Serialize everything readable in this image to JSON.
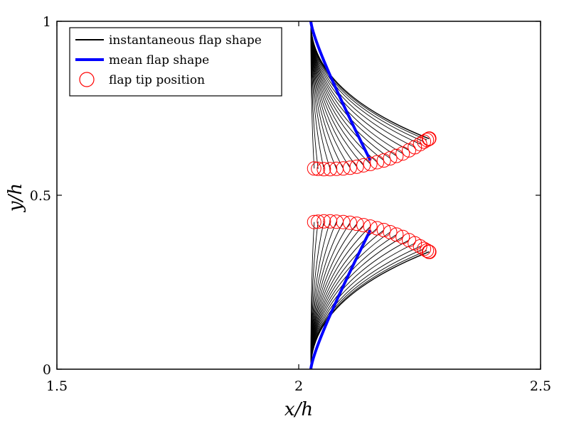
{
  "chart_data": {
    "type": "line",
    "title": "",
    "xlabel": "x/h",
    "ylabel": "y/h",
    "xlim": [
      1.5,
      2.5
    ],
    "ylim": [
      0,
      1
    ],
    "x_ticks": [
      {
        "value": 1.5,
        "label": "1.5"
      },
      {
        "value": 2,
        "label": "2"
      },
      {
        "value": 2.5,
        "label": "2.5"
      }
    ],
    "y_ticks": [
      {
        "value": 0,
        "label": "0"
      },
      {
        "value": 0.5,
        "label": "0.5"
      },
      {
        "value": 1,
        "label": "1"
      }
    ],
    "grid": false,
    "legend_position": "top-left",
    "legend": [
      {
        "label": "instantaneous flap shape",
        "color": "#000000",
        "style": "line"
      },
      {
        "label": "mean flap shape",
        "color": "#0000ff",
        "style": "thick-line"
      },
      {
        "label": "flap tip position",
        "color": "#ff0000",
        "style": "circle"
      }
    ],
    "flaps": [
      {
        "name": "upper",
        "base": [
          2.025,
          1.0
        ],
        "mean_tip": [
          2.148,
          0.6
        ],
        "tip_positions": [
          [
            2.032,
            0.577
          ],
          [
            2.04,
            0.576
          ],
          [
            2.052,
            0.575
          ],
          [
            2.065,
            0.575
          ],
          [
            2.078,
            0.576
          ],
          [
            2.092,
            0.577
          ],
          [
            2.106,
            0.579
          ],
          [
            2.12,
            0.582
          ],
          [
            2.134,
            0.586
          ],
          [
            2.148,
            0.59
          ],
          [
            2.162,
            0.595
          ],
          [
            2.176,
            0.6
          ],
          [
            2.189,
            0.606
          ],
          [
            2.202,
            0.613
          ],
          [
            2.215,
            0.62
          ],
          [
            2.228,
            0.629
          ],
          [
            2.24,
            0.638
          ],
          [
            2.251,
            0.647
          ],
          [
            2.259,
            0.654
          ],
          [
            2.265,
            0.659
          ],
          [
            2.269,
            0.662
          ],
          [
            2.27,
            0.663
          ]
        ]
      },
      {
        "name": "lower",
        "base": [
          2.025,
          0.0
        ],
        "mean_tip": [
          2.148,
          0.4
        ],
        "tip_positions": [
          [
            2.032,
            0.423
          ],
          [
            2.04,
            0.424
          ],
          [
            2.052,
            0.425
          ],
          [
            2.065,
            0.425
          ],
          [
            2.078,
            0.424
          ],
          [
            2.092,
            0.423
          ],
          [
            2.106,
            0.421
          ],
          [
            2.12,
            0.418
          ],
          [
            2.134,
            0.414
          ],
          [
            2.148,
            0.41
          ],
          [
            2.162,
            0.405
          ],
          [
            2.176,
            0.4
          ],
          [
            2.189,
            0.394
          ],
          [
            2.202,
            0.387
          ],
          [
            2.215,
            0.38
          ],
          [
            2.228,
            0.371
          ],
          [
            2.24,
            0.362
          ],
          [
            2.251,
            0.353
          ],
          [
            2.259,
            0.346
          ],
          [
            2.265,
            0.341
          ],
          [
            2.269,
            0.338
          ],
          [
            2.27,
            0.337
          ]
        ]
      }
    ],
    "colors": {
      "instantaneous": "#000000",
      "mean": "#0000ff",
      "tip": "#ff0000"
    }
  }
}
